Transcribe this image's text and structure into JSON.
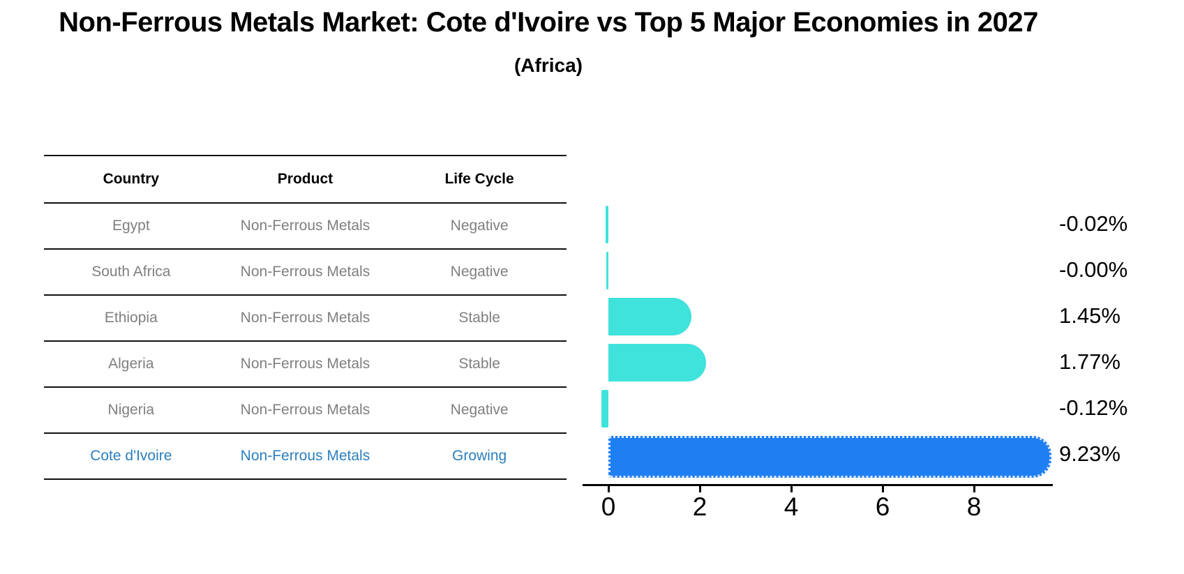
{
  "title": "Non-Ferrous Metals Market: Cote d'Ivoire vs Top 5 Major Economies in 2027",
  "subtitle": "(Africa)",
  "table": {
    "headers": [
      "Country",
      "Product",
      "Life Cycle"
    ],
    "rows": [
      {
        "country": "Egypt",
        "product": "Non-Ferrous Metals",
        "life_cycle": "Negative",
        "highlight": false
      },
      {
        "country": "South Africa",
        "product": "Non-Ferrous Metals",
        "life_cycle": "Negative",
        "highlight": false
      },
      {
        "country": "Ethiopia",
        "product": "Non-Ferrous Metals",
        "life_cycle": "Stable",
        "highlight": false
      },
      {
        "country": "Algeria",
        "product": "Non-Ferrous Metals",
        "life_cycle": "Stable",
        "highlight": false
      },
      {
        "country": "Nigeria",
        "product": "Non-Ferrous Metals",
        "life_cycle": "Negative",
        "highlight": false
      },
      {
        "country": "Cote d'Ivoire",
        "product": "Non-Ferrous Metals",
        "life_cycle": "Growing",
        "highlight": true
      }
    ]
  },
  "chart_data": {
    "type": "bar",
    "orientation": "horizontal",
    "title": "Non-Ferrous Metals Market: Cote d'Ivoire vs Top 5 Major Economies in 2027",
    "subtitle": "(Africa)",
    "categories": [
      "Egypt",
      "South Africa",
      "Ethiopia",
      "Algeria",
      "Nigeria",
      "Cote d'Ivoire"
    ],
    "values": [
      -0.02,
      -0.0,
      1.45,
      1.77,
      -0.12,
      9.23
    ],
    "value_labels": [
      "-0.02%",
      "-0.00%",
      "1.45%",
      "1.77%",
      "-0.12%",
      "9.23%"
    ],
    "xticks": [
      0,
      2,
      4,
      6,
      8
    ],
    "xlim": [
      -0.6,
      9.7
    ],
    "grid": false,
    "legend": false,
    "highlight_index": 5,
    "bar_color": "#40E2DC",
    "highlight_color": "#1E7FF2"
  },
  "colors": {
    "table_text": "#7f7f7f",
    "header_text": "#000000",
    "highlight_text": "#2B7FBF",
    "axis": "#000000"
  }
}
